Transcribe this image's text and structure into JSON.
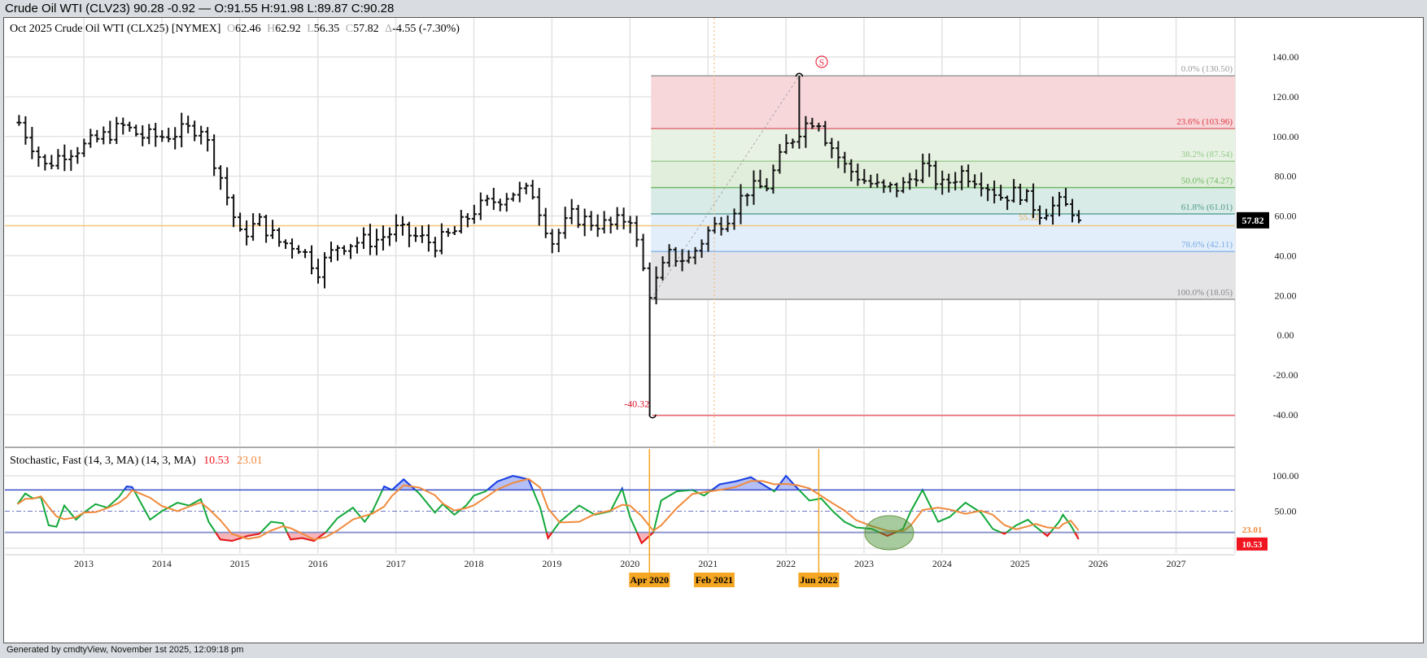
{
  "title_bar": "Crude Oil WTI (CLV23) 90.28 -0.92 — O:91.55 H:91.98 L:89.87 C:90.28",
  "legend": {
    "name": "Oct 2025 Crude Oil WTI (CLX25) [NYMEX]",
    "o_label": "O",
    "o": "62.46",
    "h_label": "H",
    "h": "62.92",
    "l_label": "L",
    "l": "56.35",
    "c_label": "C",
    "c": "57.82",
    "d_label": "Δ",
    "d": "-4.55 (-7.30%)"
  },
  "stoch_legend": {
    "name": "Stochastic, Fast (14, 3, MA)  (14, 3, MA)",
    "k": "10.53",
    "d": "23.01"
  },
  "footer": "Generated by cmdtyView, November 1st 2025, 12:09:18 pm",
  "colors": {
    "k_line": "#12a83a",
    "d_line": "#f08a3c",
    "overbought": "#1f3cf0",
    "oversold": "#f0141e",
    "price_label_bg": "#000000"
  },
  "chart_data": [
    {
      "type": "ohlc",
      "title": "Oct 2025 Crude Oil WTI (CLX25) monthly",
      "ylim": [
        -50,
        150
      ],
      "y_ticks": [
        "140.00",
        "120.00",
        "100.00",
        "80.00",
        "60.00",
        "40.00",
        "20.00",
        "0.00",
        "-20.00",
        "-40.00"
      ],
      "y_tick_values": [
        140,
        120,
        100,
        80,
        60,
        40,
        20,
        0,
        -20,
        -40
      ],
      "x_ticks": [
        "2013",
        "2014",
        "2015",
        "2016",
        "2017",
        "2018",
        "2019",
        "2020",
        "2021",
        "2022",
        "2023",
        "2024",
        "2025",
        "2026",
        "2027"
      ],
      "x_tick_values": [
        2013,
        2014,
        2015,
        2016,
        2017,
        2018,
        2019,
        2020,
        2021,
        2022,
        2023,
        2024,
        2025,
        2026,
        2027
      ],
      "xlim": [
        2012.1,
        2027.8
      ],
      "approx_closes": [
        [
          2012.2,
          105
        ],
        [
          2012.5,
          85
        ],
        [
          2012.75,
          92
        ],
        [
          2013.0,
          95
        ],
        [
          2013.5,
          105
        ],
        [
          2013.75,
          100
        ],
        [
          2014.0,
          100
        ],
        [
          2014.5,
          105
        ],
        [
          2014.75,
          80
        ],
        [
          2015.0,
          50
        ],
        [
          2015.25,
          57
        ],
        [
          2015.5,
          47
        ],
        [
          2015.75,
          45
        ],
        [
          2016.0,
          33
        ],
        [
          2016.25,
          45
        ],
        [
          2016.5,
          47
        ],
        [
          2016.75,
          48
        ],
        [
          2017.0,
          53
        ],
        [
          2017.5,
          46
        ],
        [
          2017.75,
          52
        ],
        [
          2018.0,
          63
        ],
        [
          2018.5,
          72
        ],
        [
          2018.75,
          72
        ],
        [
          2019.0,
          47
        ],
        [
          2019.25,
          60
        ],
        [
          2019.5,
          57
        ],
        [
          2019.75,
          55
        ],
        [
          2020.0,
          60
        ],
        [
          2020.25,
          20
        ],
        [
          2020.5,
          40
        ],
        [
          2020.75,
          38
        ],
        [
          2021.0,
          52
        ],
        [
          2021.25,
          60
        ],
        [
          2021.5,
          73
        ],
        [
          2021.75,
          75
        ],
        [
          2022.0,
          95
        ],
        [
          2022.2,
          105
        ],
        [
          2022.4,
          110
        ],
        [
          2022.5,
          100
        ],
        [
          2022.75,
          85
        ],
        [
          2023.0,
          78
        ],
        [
          2023.25,
          73
        ],
        [
          2023.5,
          75
        ],
        [
          2023.75,
          85
        ],
        [
          2024.0,
          75
        ],
        [
          2024.25,
          82
        ],
        [
          2024.5,
          78
        ],
        [
          2024.75,
          70
        ],
        [
          2025.0,
          72
        ],
        [
          2025.25,
          62
        ],
        [
          2025.5,
          66
        ],
        [
          2025.75,
          62
        ],
        [
          2025.83,
          57.82
        ]
      ],
      "last_price": "57.82",
      "low_annotation": {
        "label": "-40.32",
        "value": -40.32,
        "date": 2020.29
      },
      "high_marker": {
        "label": "S",
        "value": 130.5,
        "date": 2022.17
      },
      "support_line": {
        "label": "55.12",
        "value": 55.12
      },
      "fibonacci": [
        {
          "label": "0.0% (130.50)",
          "value": 130.5
        },
        {
          "label": "23.6% (103.96)",
          "value": 103.96
        },
        {
          "label": "38.2% (87.54)",
          "value": 87.54
        },
        {
          "label": "50.0% (74.27)",
          "value": 74.27
        },
        {
          "label": "61.8% (61.01)",
          "value": 61.01
        },
        {
          "label": "78.6% (42.11)",
          "value": 42.11
        },
        {
          "label": "100.0% (18.05)",
          "value": 18.05
        }
      ],
      "event_markers": [
        {
          "label": "Apr 2020",
          "date": 2020.25
        },
        {
          "label": "Feb 2021",
          "date": 2021.08
        },
        {
          "label": "Jun 2022",
          "date": 2022.42
        }
      ]
    },
    {
      "type": "line",
      "title": "Stochastic, Fast (14, 3, MA)",
      "ylim": [
        0,
        100
      ],
      "y_ticks": [
        "100.00",
        "50.00"
      ],
      "y_tick_values": [
        100,
        50
      ],
      "overbought": 80,
      "oversold": 20,
      "mid": 50,
      "k_last": 10.53,
      "d_last": 23.01,
      "k_points": [
        [
          2012.15,
          60
        ],
        [
          2012.25,
          75
        ],
        [
          2012.35,
          68
        ],
        [
          2012.45,
          70
        ],
        [
          2012.55,
          30
        ],
        [
          2012.65,
          28
        ],
        [
          2012.75,
          58
        ],
        [
          2012.9,
          38
        ],
        [
          2013.0,
          48
        ],
        [
          2013.15,
          60
        ],
        [
          2013.3,
          55
        ],
        [
          2013.45,
          70
        ],
        [
          2013.55,
          85
        ],
        [
          2013.62,
          84
        ],
        [
          2013.85,
          38
        ],
        [
          2014.0,
          50
        ],
        [
          2014.2,
          62
        ],
        [
          2014.35,
          58
        ],
        [
          2014.5,
          67
        ],
        [
          2014.6,
          35
        ],
        [
          2014.75,
          10
        ],
        [
          2014.9,
          8
        ],
        [
          2015.1,
          15
        ],
        [
          2015.25,
          18
        ],
        [
          2015.4,
          35
        ],
        [
          2015.55,
          33
        ],
        [
          2015.65,
          10
        ],
        [
          2015.8,
          12
        ],
        [
          2015.95,
          8
        ],
        [
          2016.1,
          20
        ],
        [
          2016.25,
          40
        ],
        [
          2016.45,
          55
        ],
        [
          2016.6,
          35
        ],
        [
          2016.7,
          50
        ],
        [
          2016.85,
          85
        ],
        [
          2016.95,
          80
        ],
        [
          2017.1,
          95
        ],
        [
          2017.3,
          75
        ],
        [
          2017.5,
          48
        ],
        [
          2017.6,
          60
        ],
        [
          2017.75,
          45
        ],
        [
          2017.9,
          58
        ],
        [
          2018.0,
          72
        ],
        [
          2018.15,
          78
        ],
        [
          2018.3,
          92
        ],
        [
          2018.5,
          100
        ],
        [
          2018.7,
          95
        ],
        [
          2018.85,
          55
        ],
        [
          2018.95,
          12
        ],
        [
          2019.1,
          35
        ],
        [
          2019.35,
          58
        ],
        [
          2019.55,
          45
        ],
        [
          2019.75,
          50
        ],
        [
          2019.9,
          82
        ],
        [
          2020.0,
          42
        ],
        [
          2020.15,
          5
        ],
        [
          2020.3,
          20
        ],
        [
          2020.4,
          65
        ],
        [
          2020.6,
          78
        ],
        [
          2020.8,
          80
        ],
        [
          2020.95,
          72
        ],
        [
          2021.15,
          88
        ],
        [
          2021.35,
          92
        ],
        [
          2021.55,
          98
        ],
        [
          2021.7,
          88
        ],
        [
          2021.85,
          78
        ],
        [
          2022.0,
          100
        ],
        [
          2022.15,
          82
        ],
        [
          2022.3,
          65
        ],
        [
          2022.45,
          68
        ],
        [
          2022.6,
          50
        ],
        [
          2022.75,
          35
        ],
        [
          2022.9,
          27
        ],
        [
          2023.1,
          25
        ],
        [
          2023.3,
          15
        ],
        [
          2023.5,
          25
        ],
        [
          2023.6,
          50
        ],
        [
          2023.75,
          80
        ],
        [
          2023.95,
          35
        ],
        [
          2024.1,
          42
        ],
        [
          2024.3,
          62
        ],
        [
          2024.5,
          48
        ],
        [
          2024.65,
          25
        ],
        [
          2024.8,
          18
        ],
        [
          2024.95,
          30
        ],
        [
          2025.1,
          38
        ],
        [
          2025.2,
          28
        ],
        [
          2025.35,
          15
        ],
        [
          2025.5,
          35
        ],
        [
          2025.55,
          45
        ],
        [
          2025.65,
          30
        ],
        [
          2025.75,
          10.53
        ]
      ]
    }
  ]
}
